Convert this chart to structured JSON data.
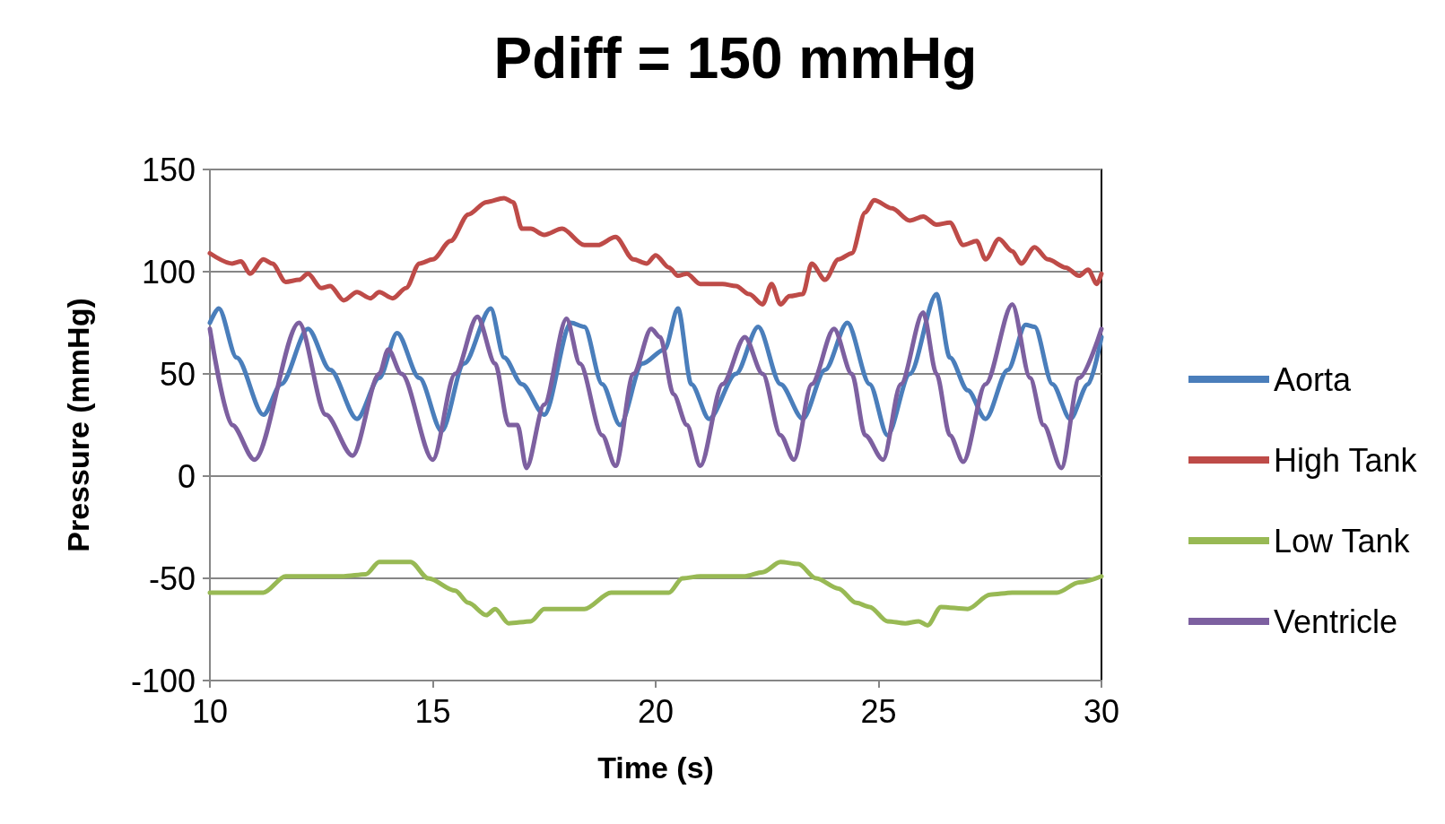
{
  "chart_data": {
    "type": "line",
    "title": "Pdiff = 150 mmHg",
    "xlabel": "Time (s)",
    "ylabel": "Pressure (mmHg)",
    "xlim": [
      10,
      30
    ],
    "xticks": [
      10,
      15,
      20,
      25,
      30
    ],
    "ylim": [
      -100,
      150
    ],
    "yticks": [
      -100,
      -50,
      0,
      50,
      100,
      150
    ],
    "grid": "y",
    "legend": "right",
    "marker": "none",
    "line_style": "solid",
    "series": [
      {
        "name": "Aorta",
        "color": "#4a7ebb",
        "x": [
          10.0,
          10.2,
          10.6,
          11.2,
          11.6,
          12.2,
          12.7,
          13.3,
          13.8,
          14.2,
          14.7,
          15.2,
          15.7,
          16.3,
          16.6,
          17.0,
          17.5,
          18.1,
          18.4,
          18.8,
          19.2,
          19.7,
          20.2,
          20.5,
          20.8,
          21.2,
          21.8,
          22.3,
          22.8,
          23.3,
          23.8,
          24.3,
          24.8,
          25.2,
          25.7,
          26.3,
          26.6,
          27.0,
          27.4,
          27.9,
          28.3,
          28.5,
          28.9,
          29.3,
          29.7,
          30.0
        ],
        "values": [
          75,
          82,
          58,
          30,
          45,
          72,
          52,
          28,
          48,
          70,
          48,
          22,
          55,
          82,
          58,
          45,
          30,
          75,
          73,
          45,
          25,
          55,
          62,
          82,
          45,
          28,
          50,
          73,
          45,
          28,
          52,
          75,
          45,
          20,
          50,
          89,
          58,
          42,
          28,
          52,
          74,
          73,
          45,
          28,
          45,
          68
        ]
      },
      {
        "name": "High Tank",
        "color": "#be4b48",
        "x": [
          10.0,
          10.5,
          10.7,
          10.9,
          11.2,
          11.4,
          11.7,
          12.0,
          12.2,
          12.5,
          12.7,
          13.0,
          13.3,
          13.6,
          13.8,
          14.1,
          14.4,
          14.7,
          15.0,
          15.4,
          15.8,
          16.2,
          16.6,
          16.8,
          17.0,
          17.2,
          17.5,
          17.9,
          18.4,
          18.7,
          19.1,
          19.5,
          19.8,
          20.0,
          20.3,
          20.5,
          20.7,
          21.0,
          21.5,
          21.8,
          22.1,
          22.4,
          22.6,
          22.8,
          23.0,
          23.3,
          23.5,
          23.8,
          24.1,
          24.4,
          24.7,
          24.9,
          25.3,
          25.7,
          26.0,
          26.3,
          26.6,
          26.9,
          27.2,
          27.4,
          27.7,
          28.0,
          28.2,
          28.5,
          28.8,
          29.2,
          29.5,
          29.7,
          29.9,
          30.0
        ],
        "values": [
          109,
          104,
          105,
          99,
          106,
          104,
          95,
          96,
          99,
          92,
          93,
          86,
          90,
          87,
          90,
          87,
          92,
          104,
          106,
          115,
          128,
          134,
          136,
          134,
          121,
          121,
          118,
          121,
          113,
          113,
          117,
          106,
          104,
          108,
          102,
          98,
          99,
          94,
          94,
          93,
          89,
          84,
          94,
          84,
          88,
          89,
          104,
          96,
          106,
          109,
          129,
          135,
          131,
          125,
          127,
          123,
          124,
          113,
          115,
          106,
          116,
          110,
          104,
          112,
          106,
          102,
          98,
          101,
          94,
          99
        ]
      },
      {
        "name": "Low Tank",
        "color": "#98b954",
        "x": [
          10.0,
          11.2,
          11.7,
          12.0,
          13.0,
          13.5,
          13.8,
          14.0,
          14.5,
          14.9,
          15.5,
          15.8,
          16.2,
          16.4,
          16.7,
          17.2,
          17.5,
          18.0,
          18.4,
          19.0,
          19.5,
          20.3,
          20.6,
          21.0,
          21.6,
          22.0,
          22.4,
          22.8,
          23.2,
          23.6,
          24.1,
          24.5,
          24.8,
          25.2,
          25.6,
          25.9,
          26.1,
          26.4,
          27.0,
          27.5,
          28.0,
          29.0,
          29.5,
          30.0
        ],
        "values": [
          -57,
          -57,
          -49,
          -49,
          -49,
          -48,
          -42,
          -42,
          -42,
          -50,
          -56,
          -62,
          -68,
          -65,
          -72,
          -71,
          -65,
          -65,
          -65,
          -57,
          -57,
          -57,
          -50,
          -49,
          -49,
          -49,
          -47,
          -42,
          -43,
          -50,
          -55,
          -62,
          -64,
          -71,
          -72,
          -71,
          -73,
          -64,
          -65,
          -58,
          -57,
          -57,
          -52,
          -49
        ]
      },
      {
        "name": "Ventricle",
        "color": "#7d60a0",
        "x": [
          10.0,
          10.5,
          11.0,
          12.0,
          12.6,
          13.2,
          13.8,
          14.0,
          14.3,
          15.0,
          15.5,
          16.0,
          16.4,
          16.7,
          16.9,
          17.1,
          17.5,
          18.0,
          18.3,
          18.8,
          19.1,
          19.5,
          19.9,
          20.1,
          20.4,
          20.7,
          21.0,
          21.5,
          22.0,
          22.4,
          22.8,
          23.1,
          23.5,
          24.0,
          24.4,
          24.7,
          25.1,
          25.5,
          26.0,
          26.3,
          26.6,
          26.9,
          27.4,
          28.0,
          28.4,
          28.7,
          29.1,
          29.5,
          30.0
        ],
        "values": [
          72,
          25,
          8,
          75,
          30,
          10,
          50,
          62,
          50,
          8,
          50,
          78,
          55,
          25,
          25,
          4,
          35,
          77,
          55,
          20,
          5,
          50,
          72,
          68,
          40,
          25,
          5,
          45,
          68,
          50,
          20,
          8,
          45,
          72,
          50,
          20,
          8,
          45,
          80,
          50,
          20,
          7,
          45,
          84,
          48,
          25,
          4,
          48,
          72
        ]
      }
    ]
  }
}
